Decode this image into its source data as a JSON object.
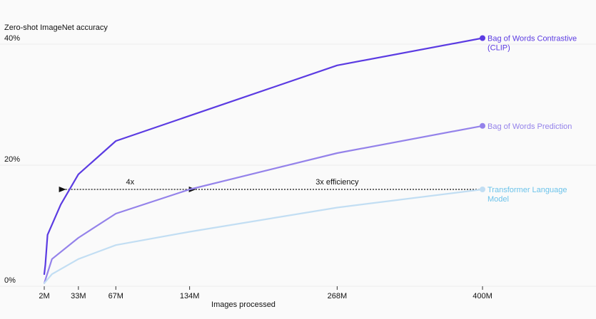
{
  "chart_data": {
    "type": "line",
    "ylabel": "Zero-shot ImageNet accuracy",
    "xlabel": "Images processed",
    "y_ticks": [
      {
        "value": 0,
        "label": "0%"
      },
      {
        "value": 20,
        "label": "20%"
      },
      {
        "value": 40,
        "label": "40%"
      }
    ],
    "x_ticks": [
      {
        "value": 2,
        "label": "2M"
      },
      {
        "value": 33,
        "label": "33M"
      },
      {
        "value": 67,
        "label": "67M"
      },
      {
        "value": 134,
        "label": "134M"
      },
      {
        "value": 268,
        "label": "268M"
      },
      {
        "value": 400,
        "label": "400M"
      }
    ],
    "xlim": [
      2,
      400
    ],
    "ylim": [
      0,
      40
    ],
    "grid": "horizontal",
    "legend": "end-of-line labels (right)",
    "series": [
      {
        "name": "Bag of Words Contrastive (CLIP)",
        "name_lines": [
          "Bag of Words Contrastive",
          "(CLIP)"
        ],
        "color": "#5b3be2",
        "x": [
          2,
          3,
          5,
          17,
          33,
          67,
          268,
          400
        ],
        "y": [
          2,
          3.5,
          8.5,
          13.5,
          18.5,
          24,
          36.5,
          41
        ]
      },
      {
        "name": "Bag of Words Prediction",
        "name_lines": [
          "Bag of Words Prediction"
        ],
        "color": "#9482ea",
        "x": [
          2,
          9,
          33,
          67,
          134,
          268,
          400
        ],
        "y": [
          0.5,
          4.5,
          8,
          12,
          16,
          22,
          26.5
        ]
      },
      {
        "name": "Transformer Language Model",
        "name_lines": [
          "Transformer Language",
          "Model"
        ],
        "color": "#c2def3",
        "label_color": "#6cc3ea",
        "x": [
          2,
          9,
          33,
          67,
          134,
          268,
          400
        ],
        "y": [
          0.5,
          2,
          4.5,
          6.8,
          9,
          13,
          16
        ]
      }
    ],
    "annotations": [
      {
        "text": "4x",
        "from_x": 134,
        "to_x": 16,
        "y": 16,
        "text_x": 80
      },
      {
        "text": "3x efficiency",
        "from_x": 400,
        "to_x": 134,
        "y": 16,
        "text_x": 268
      }
    ]
  }
}
